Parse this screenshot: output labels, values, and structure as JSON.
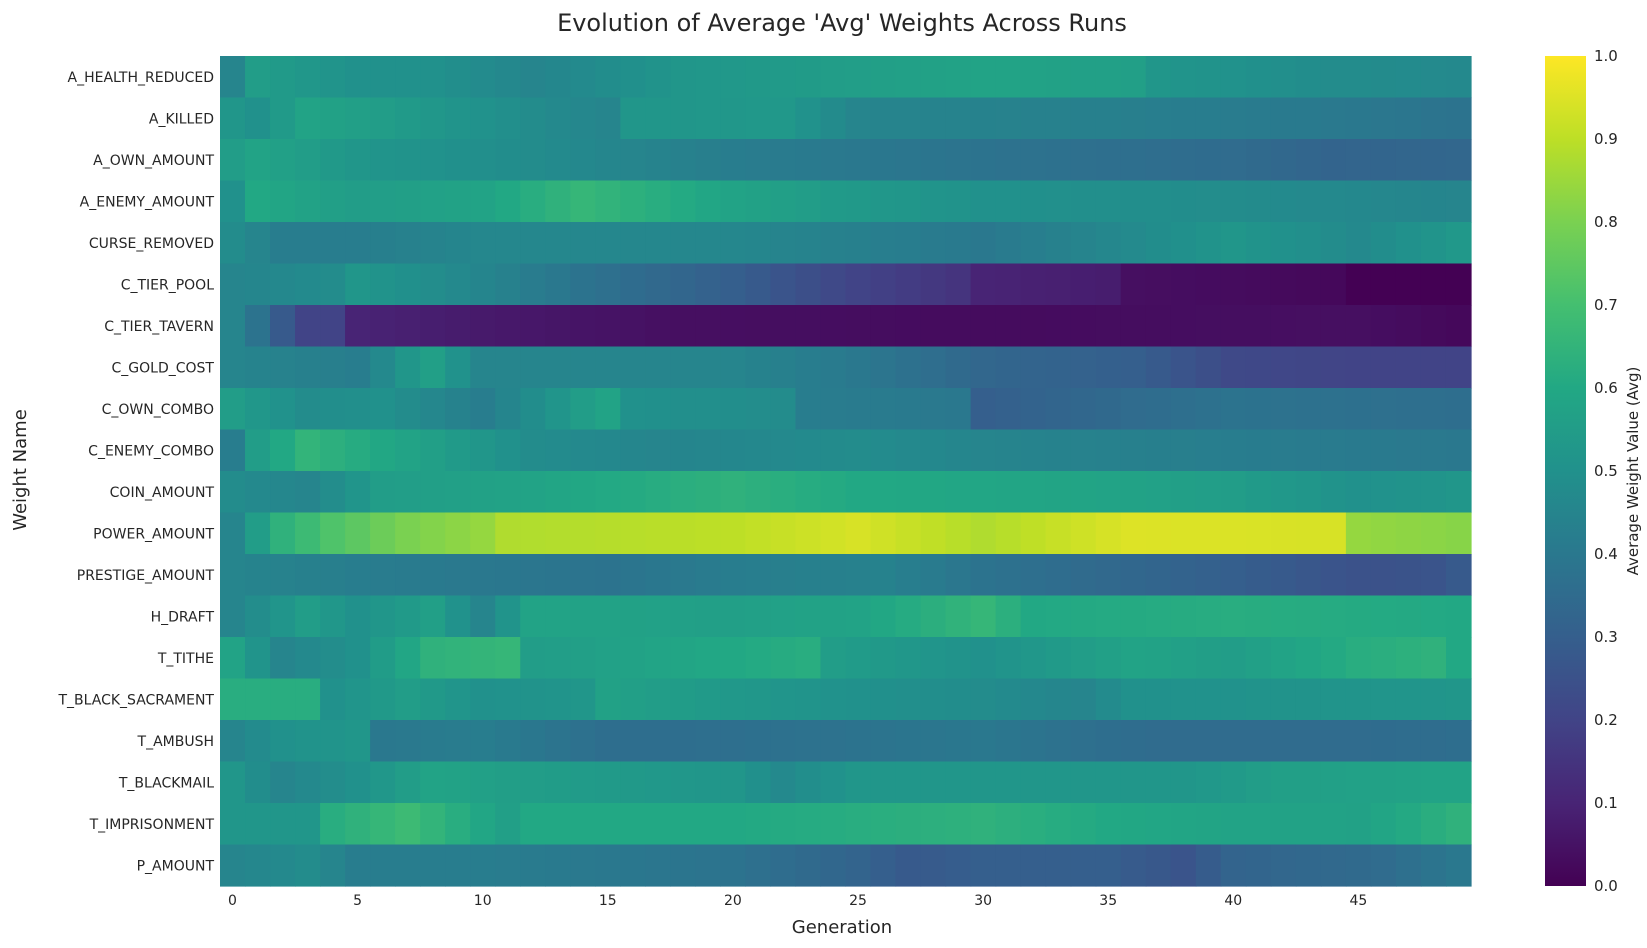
{
  "chart_data": {
    "type": "heatmap",
    "title": "Evolution of Average 'Avg' Weights Across Runs",
    "xlabel": "Generation",
    "ylabel": "Weight Name",
    "colorbar_label": "Average Weight Value (Avg)",
    "colormap": "viridis",
    "vmin": 0.0,
    "vmax": 1.0,
    "x_range": [
      0,
      49
    ],
    "x_ticks": [
      0,
      5,
      10,
      15,
      20,
      25,
      30,
      35,
      40,
      45
    ],
    "colorbar_ticks": [
      "0.0",
      "0.1",
      "0.2",
      "0.3",
      "0.4",
      "0.5",
      "0.6",
      "0.7",
      "0.8",
      "0.9",
      "1.0"
    ],
    "rows": [
      {
        "name": "A_HEALTH_REDUCED",
        "anchors": [
          [
            0,
            0.45
          ],
          [
            1,
            0.55
          ],
          [
            5,
            0.5
          ],
          [
            8,
            0.5
          ],
          [
            12,
            0.45
          ],
          [
            18,
            0.52
          ],
          [
            24,
            0.55
          ],
          [
            30,
            0.58
          ],
          [
            36,
            0.56
          ],
          [
            37,
            0.52
          ],
          [
            44,
            0.48
          ],
          [
            49,
            0.47
          ]
        ]
      },
      {
        "name": "A_KILLED",
        "anchors": [
          [
            0,
            0.52
          ],
          [
            1,
            0.5
          ],
          [
            3,
            0.58
          ],
          [
            6,
            0.55
          ],
          [
            12,
            0.48
          ],
          [
            15,
            0.45
          ],
          [
            16,
            0.52
          ],
          [
            22,
            0.53
          ],
          [
            25,
            0.45
          ],
          [
            35,
            0.43
          ],
          [
            45,
            0.4
          ],
          [
            49,
            0.38
          ]
        ]
      },
      {
        "name": "A_OWN_AMOUNT",
        "anchors": [
          [
            0,
            0.55
          ],
          [
            1,
            0.58
          ],
          [
            5,
            0.52
          ],
          [
            12,
            0.48
          ],
          [
            20,
            0.42
          ],
          [
            30,
            0.38
          ],
          [
            40,
            0.35
          ],
          [
            44,
            0.32
          ],
          [
            49,
            0.33
          ]
        ]
      },
      {
        "name": "A_ENEMY_AMOUNT",
        "anchors": [
          [
            0,
            0.5
          ],
          [
            1,
            0.6
          ],
          [
            5,
            0.55
          ],
          [
            10,
            0.58
          ],
          [
            14,
            0.66
          ],
          [
            17,
            0.62
          ],
          [
            20,
            0.58
          ],
          [
            24,
            0.54
          ],
          [
            30,
            0.5
          ],
          [
            40,
            0.48
          ],
          [
            49,
            0.45
          ]
        ]
      },
      {
        "name": "CURSE_REMOVED",
        "anchors": [
          [
            0,
            0.48
          ],
          [
            2,
            0.42
          ],
          [
            5,
            0.42
          ],
          [
            10,
            0.46
          ],
          [
            20,
            0.46
          ],
          [
            25,
            0.43
          ],
          [
            30,
            0.4
          ],
          [
            35,
            0.46
          ],
          [
            40,
            0.52
          ],
          [
            45,
            0.47
          ],
          [
            49,
            0.53
          ]
        ]
      },
      {
        "name": "C_TIER_POOL",
        "anchors": [
          [
            0,
            0.45
          ],
          [
            4,
            0.48
          ],
          [
            5,
            0.52
          ],
          [
            9,
            0.47
          ],
          [
            14,
            0.38
          ],
          [
            20,
            0.3
          ],
          [
            25,
            0.2
          ],
          [
            29,
            0.15
          ],
          [
            30,
            0.1
          ],
          [
            35,
            0.08
          ],
          [
            36,
            0.04
          ],
          [
            44,
            0.02
          ],
          [
            45,
            0.0
          ],
          [
            49,
            0.0
          ]
        ]
      },
      {
        "name": "C_TIER_TAVERN",
        "anchors": [
          [
            0,
            0.45
          ],
          [
            1,
            0.38
          ],
          [
            2,
            0.28
          ],
          [
            3,
            0.2
          ],
          [
            4,
            0.2
          ],
          [
            5,
            0.1
          ],
          [
            10,
            0.07
          ],
          [
            18,
            0.04
          ],
          [
            30,
            0.03
          ],
          [
            45,
            0.04
          ],
          [
            49,
            0.02
          ]
        ]
      },
      {
        "name": "C_GOLD_COST",
        "anchors": [
          [
            0,
            0.45
          ],
          [
            5,
            0.42
          ],
          [
            7,
            0.52
          ],
          [
            8,
            0.56
          ],
          [
            10,
            0.45
          ],
          [
            15,
            0.45
          ],
          [
            20,
            0.45
          ],
          [
            25,
            0.4
          ],
          [
            30,
            0.33
          ],
          [
            36,
            0.3
          ],
          [
            40,
            0.22
          ],
          [
            45,
            0.2
          ],
          [
            49,
            0.2
          ]
        ]
      },
      {
        "name": "C_OWN_COMBO",
        "anchors": [
          [
            0,
            0.55
          ],
          [
            3,
            0.48
          ],
          [
            6,
            0.5
          ],
          [
            10,
            0.42
          ],
          [
            14,
            0.55
          ],
          [
            15,
            0.58
          ],
          [
            16,
            0.5
          ],
          [
            22,
            0.48
          ],
          [
            23,
            0.42
          ],
          [
            29,
            0.4
          ],
          [
            30,
            0.3
          ],
          [
            36,
            0.35
          ],
          [
            40,
            0.38
          ],
          [
            49,
            0.36
          ]
        ]
      },
      {
        "name": "C_ENEMY_COMBO",
        "anchors": [
          [
            0,
            0.42
          ],
          [
            1,
            0.55
          ],
          [
            3,
            0.65
          ],
          [
            8,
            0.56
          ],
          [
            12,
            0.48
          ],
          [
            17,
            0.45
          ],
          [
            25,
            0.48
          ],
          [
            30,
            0.45
          ],
          [
            40,
            0.42
          ],
          [
            49,
            0.4
          ]
        ]
      },
      {
        "name": "COIN_AMOUNT",
        "anchors": [
          [
            0,
            0.48
          ],
          [
            3,
            0.45
          ],
          [
            6,
            0.55
          ],
          [
            12,
            0.58
          ],
          [
            20,
            0.64
          ],
          [
            25,
            0.6
          ],
          [
            35,
            0.58
          ],
          [
            40,
            0.55
          ],
          [
            45,
            0.5
          ],
          [
            49,
            0.52
          ]
        ]
      },
      {
        "name": "POWER_AMOUNT",
        "anchors": [
          [
            0,
            0.45
          ],
          [
            1,
            0.55
          ],
          [
            2,
            0.64
          ],
          [
            4,
            0.72
          ],
          [
            7,
            0.8
          ],
          [
            10,
            0.84
          ],
          [
            11,
            0.88
          ],
          [
            20,
            0.9
          ],
          [
            25,
            0.94
          ],
          [
            30,
            0.88
          ],
          [
            36,
            0.95
          ],
          [
            44,
            0.94
          ],
          [
            45,
            0.84
          ],
          [
            49,
            0.82
          ]
        ]
      },
      {
        "name": "PRESTIGE_AMOUNT",
        "anchors": [
          [
            0,
            0.45
          ],
          [
            5,
            0.42
          ],
          [
            10,
            0.4
          ],
          [
            15,
            0.38
          ],
          [
            20,
            0.42
          ],
          [
            26,
            0.44
          ],
          [
            30,
            0.38
          ],
          [
            40,
            0.3
          ],
          [
            45,
            0.25
          ],
          [
            48,
            0.26
          ],
          [
            49,
            0.28
          ]
        ]
      },
      {
        "name": "H_DRAFT",
        "anchors": [
          [
            0,
            0.45
          ],
          [
            3,
            0.55
          ],
          [
            5,
            0.5
          ],
          [
            8,
            0.56
          ],
          [
            10,
            0.45
          ],
          [
            12,
            0.58
          ],
          [
            20,
            0.56
          ],
          [
            25,
            0.58
          ],
          [
            30,
            0.66
          ],
          [
            32,
            0.6
          ],
          [
            40,
            0.62
          ],
          [
            49,
            0.6
          ]
        ]
      },
      {
        "name": "T_TITHE",
        "anchors": [
          [
            0,
            0.58
          ],
          [
            2,
            0.45
          ],
          [
            5,
            0.5
          ],
          [
            8,
            0.64
          ],
          [
            11,
            0.66
          ],
          [
            12,
            0.55
          ],
          [
            20,
            0.6
          ],
          [
            23,
            0.62
          ],
          [
            24,
            0.55
          ],
          [
            30,
            0.5
          ],
          [
            36,
            0.58
          ],
          [
            40,
            0.55
          ],
          [
            45,
            0.62
          ],
          [
            48,
            0.64
          ],
          [
            49,
            0.6
          ]
        ]
      },
      {
        "name": "T_BLACK_SACRAMENT",
        "anchors": [
          [
            0,
            0.62
          ],
          [
            3,
            0.62
          ],
          [
            4,
            0.5
          ],
          [
            7,
            0.55
          ],
          [
            10,
            0.5
          ],
          [
            14,
            0.52
          ],
          [
            15,
            0.57
          ],
          [
            20,
            0.53
          ],
          [
            25,
            0.5
          ],
          [
            30,
            0.48
          ],
          [
            34,
            0.45
          ],
          [
            36,
            0.5
          ],
          [
            49,
            0.52
          ]
        ]
      },
      {
        "name": "T_AMBUSH",
        "anchors": [
          [
            0,
            0.45
          ],
          [
            2,
            0.5
          ],
          [
            5,
            0.52
          ],
          [
            6,
            0.4
          ],
          [
            10,
            0.42
          ],
          [
            15,
            0.36
          ],
          [
            18,
            0.36
          ],
          [
            25,
            0.38
          ],
          [
            30,
            0.4
          ],
          [
            35,
            0.36
          ],
          [
            37,
            0.35
          ],
          [
            45,
            0.35
          ],
          [
            49,
            0.36
          ]
        ]
      },
      {
        "name": "T_BLACKMAIL",
        "anchors": [
          [
            0,
            0.52
          ],
          [
            2,
            0.45
          ],
          [
            5,
            0.5
          ],
          [
            8,
            0.58
          ],
          [
            12,
            0.55
          ],
          [
            20,
            0.52
          ],
          [
            22,
            0.47
          ],
          [
            25,
            0.52
          ],
          [
            38,
            0.52
          ],
          [
            42,
            0.56
          ],
          [
            49,
            0.58
          ]
        ]
      },
      {
        "name": "T_IMPRISONMENT",
        "anchors": [
          [
            0,
            0.52
          ],
          [
            3,
            0.52
          ],
          [
            4,
            0.62
          ],
          [
            7,
            0.68
          ],
          [
            9,
            0.62
          ],
          [
            11,
            0.56
          ],
          [
            12,
            0.6
          ],
          [
            20,
            0.6
          ],
          [
            30,
            0.64
          ],
          [
            35,
            0.6
          ],
          [
            40,
            0.58
          ],
          [
            45,
            0.57
          ],
          [
            49,
            0.64
          ]
        ]
      },
      {
        "name": "P_AMOUNT",
        "anchors": [
          [
            0,
            0.45
          ],
          [
            3,
            0.48
          ],
          [
            5,
            0.42
          ],
          [
            10,
            0.42
          ],
          [
            15,
            0.4
          ],
          [
            20,
            0.38
          ],
          [
            25,
            0.32
          ],
          [
            27,
            0.28
          ],
          [
            30,
            0.3
          ],
          [
            35,
            0.3
          ],
          [
            38,
            0.26
          ],
          [
            40,
            0.32
          ],
          [
            46,
            0.35
          ],
          [
            49,
            0.4
          ]
        ]
      }
    ]
  }
}
